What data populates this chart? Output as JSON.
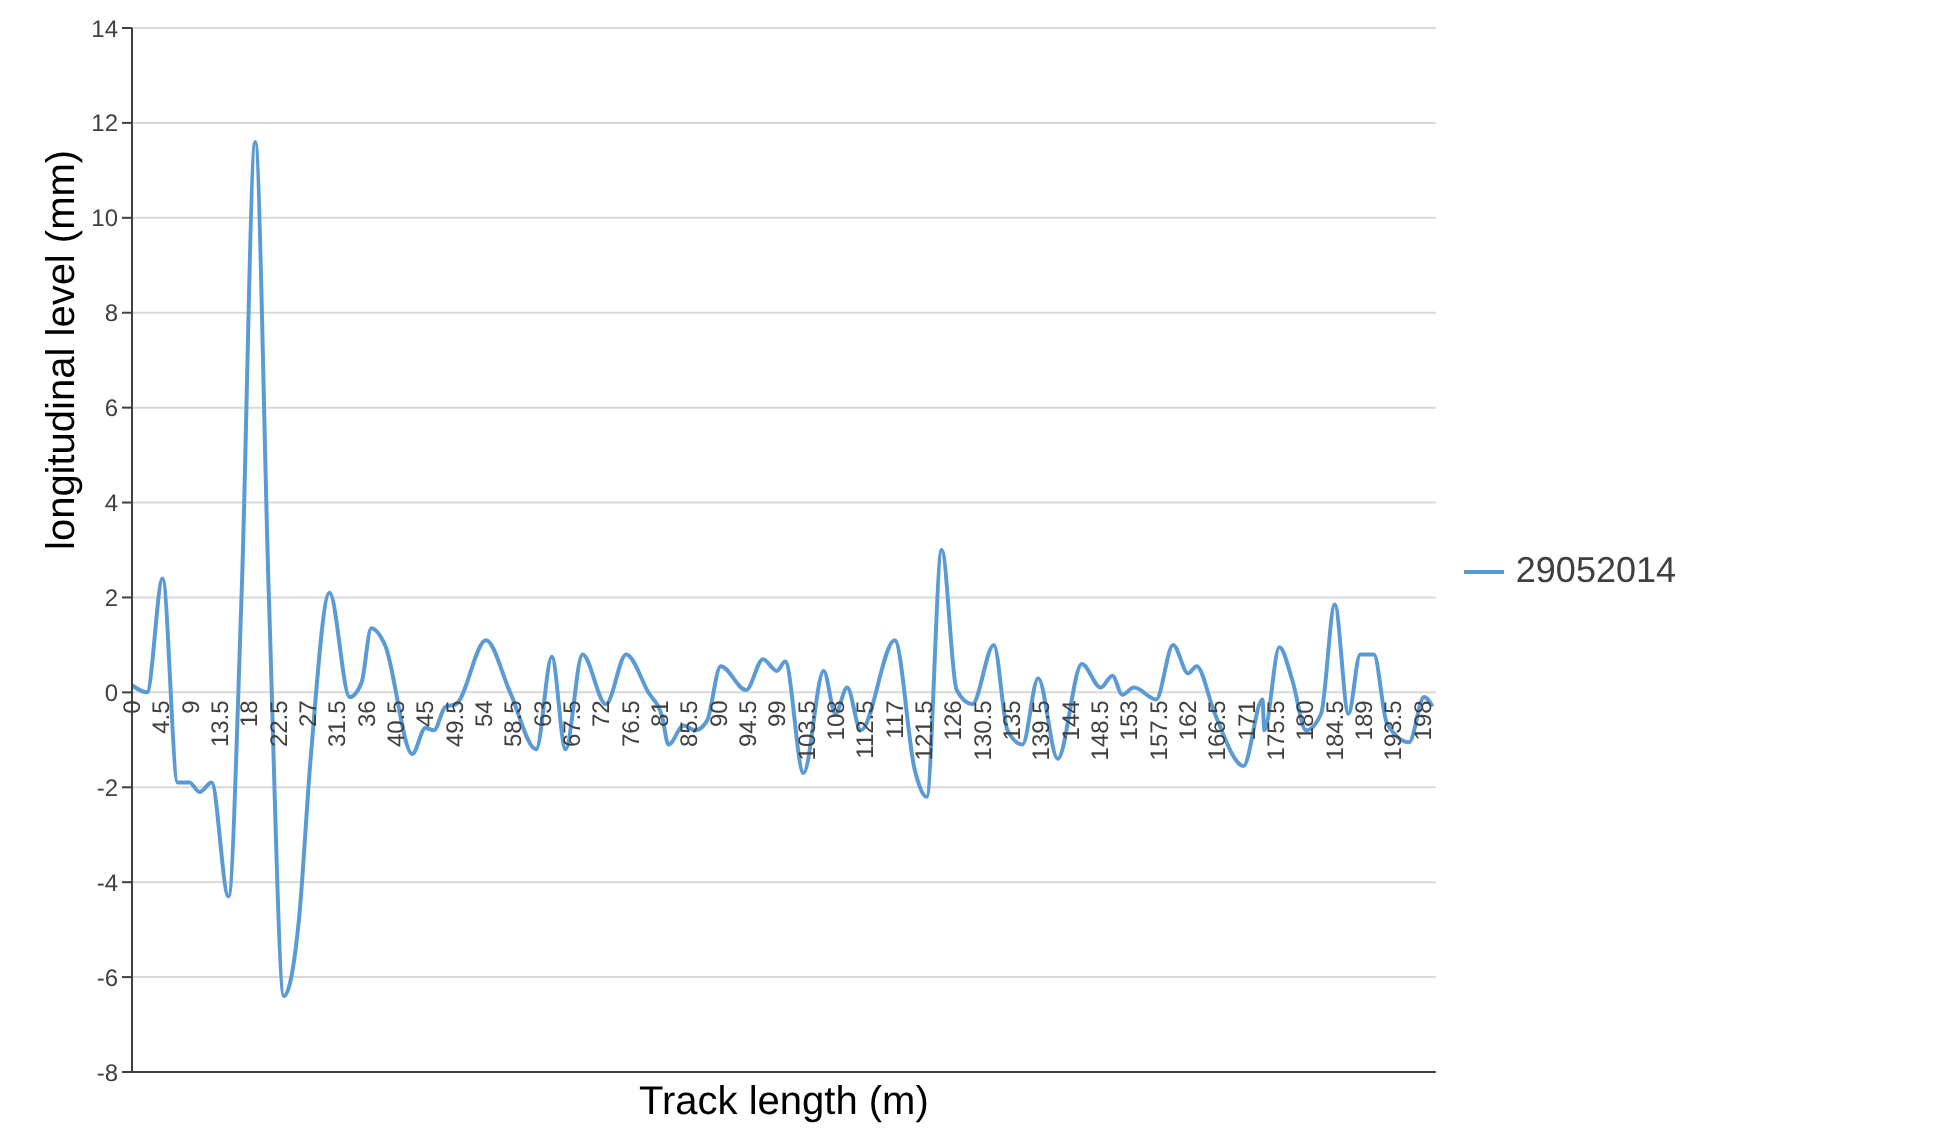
{
  "chart_data": {
    "type": "line",
    "xlabel": "Track length (m)",
    "ylabel": "longitudinal level (mm)",
    "xlim": [
      0,
      200
    ],
    "xticks": [
      0,
      4.5,
      9,
      13.5,
      18,
      22.5,
      27,
      31.5,
      36,
      40.5,
      45,
      49.5,
      54,
      58.5,
      63,
      67.5,
      72,
      76.5,
      81,
      85.5,
      90,
      94.5,
      99,
      103.5,
      108,
      112.5,
      117,
      121.5,
      126,
      130.5,
      135,
      139.5,
      144,
      148.5,
      153,
      157.5,
      162,
      166.5,
      171,
      175.5,
      180,
      184.5,
      189,
      193.5,
      198
    ],
    "ylim": [
      -8,
      14
    ],
    "yticks": [
      -8,
      -6,
      -4,
      -2,
      0,
      2,
      4,
      6,
      8,
      10,
      12,
      14
    ],
    "grid": "y",
    "legend": "right",
    "marker": "none",
    "line_style": "solid",
    "series": [
      {
        "name": "29052014",
        "color": "#5b9bd5",
        "x": [
          0,
          2.3,
          4.7,
          7,
          8.8,
          10.4,
          12.2,
          14.8,
          16.8,
          18.9,
          21,
          23.3,
          25.6,
          27.4,
          30.3,
          33.4,
          35.2,
          36.7,
          38.8,
          43,
          45,
          46.3,
          48.1,
          49.7,
          54.3,
          58,
          62,
          64.4,
          66.5,
          69.1,
          72.7,
          75.8,
          79.2,
          81.3,
          82.3,
          84.6,
          86.4,
          88.2,
          90.3,
          94.2,
          96.8,
          98.9,
          100.2,
          103,
          106.1,
          107.9,
          109.7,
          111.8,
          117,
          120.1,
          121.9,
          124.2,
          126.5,
          128.9,
          132.2,
          134.3,
          136.6,
          139,
          142,
          145.7,
          148.6,
          150.4,
          151.9,
          153.7,
          157.1,
          159.7,
          162,
          163.3,
          166.1,
          170.5,
          173.4,
          173.7,
          176,
          178,
          180.1,
          182.4,
          184.5,
          186.6,
          188.4,
          190.5,
          192.5,
          195.9,
          198.2,
          199.5
        ],
        "values": [
          0.15,
          0,
          2.4,
          -1.9,
          -1.9,
          -2.1,
          -1.9,
          -4.3,
          2,
          11.6,
          2,
          -6.4,
          -4.8,
          -1.4,
          2.1,
          -0.1,
          0.2,
          1.35,
          1,
          -1.3,
          -0.75,
          -0.8,
          -0.3,
          -0.25,
          1.1,
          0,
          -1.2,
          0.75,
          -1.2,
          0.8,
          -0.25,
          0.8,
          0,
          -0.5,
          -1.1,
          -0.7,
          -0.8,
          -0.6,
          0.55,
          0.05,
          0.7,
          0.45,
          0.65,
          -1.7,
          0.45,
          -0.45,
          0.1,
          -0.8,
          1.1,
          -1.65,
          -2.2,
          3,
          0.05,
          -0.25,
          1,
          -0.8,
          -1.1,
          0.3,
          -1.4,
          0.6,
          0.1,
          0.35,
          -0.05,
          0.1,
          -0.15,
          1,
          0.4,
          0.55,
          -0.45,
          -1.55,
          -0.15,
          -0.8,
          0.95,
          0.25,
          -0.8,
          -0.45,
          1.85,
          -0.45,
          0.8,
          0.8,
          -0.65,
          -1.05,
          -0.1,
          -0.3
        ]
      }
    ]
  }
}
